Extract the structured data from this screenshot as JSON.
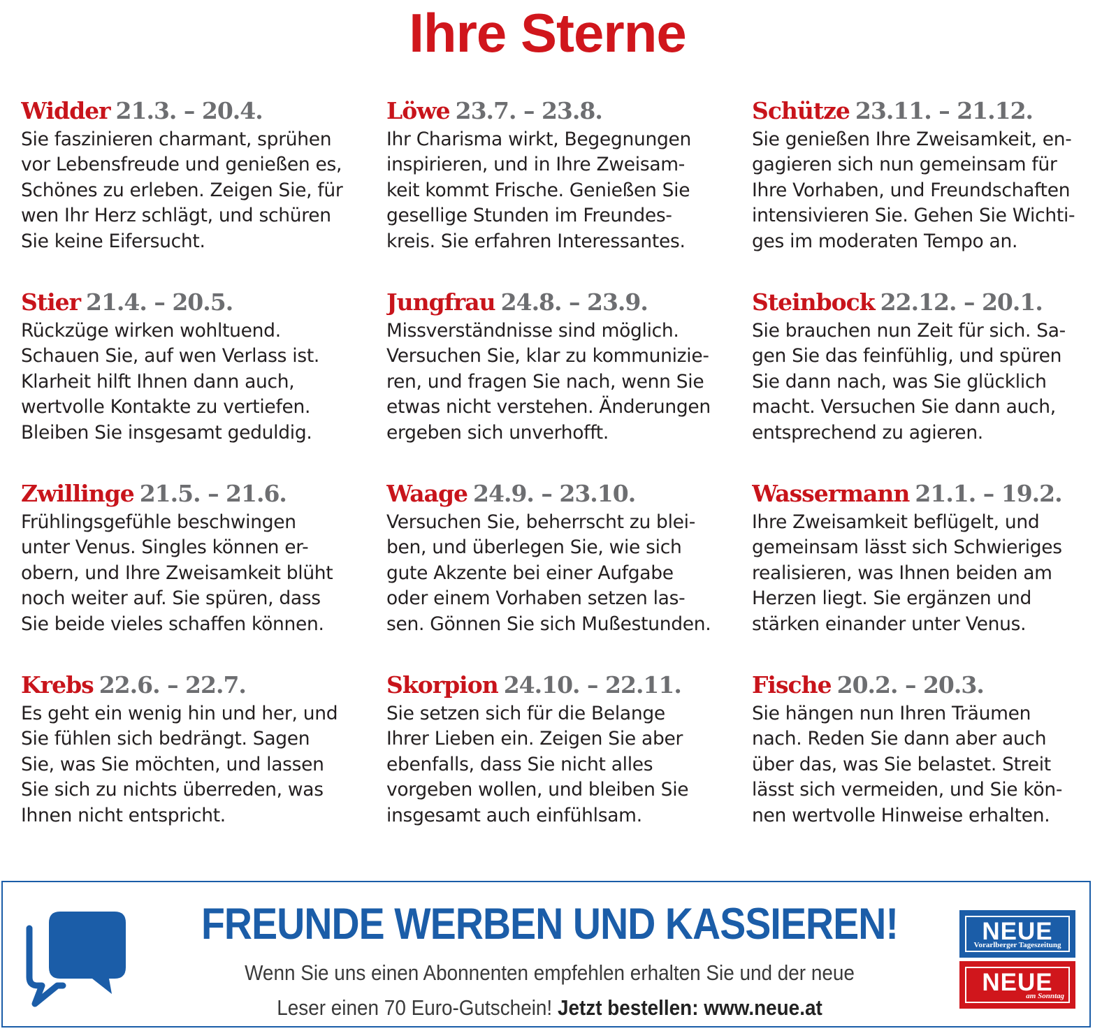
{
  "title": "Ihre Sterne",
  "horoscopes": [
    {
      "sign": "Widder",
      "dates": "21.3. – 20.4.",
      "text": "Sie faszinieren charmant, sprühen\nvor Lebensfreude und genießen es,\nSchönes zu erleben. Zeigen Sie, für\nwen Ihr Herz schlägt, und schüren\nSie keine Eifersucht."
    },
    {
      "sign": "Löwe",
      "dates": "23.7. – 23.8.",
      "text": "Ihr Charisma wirkt, Begegnungen\ninspirieren, und in Ihre Zweisam-\nkeit kommt Frische. Genießen Sie\ngesellige Stunden im Freundes-\nkreis. Sie erfahren Interessantes."
    },
    {
      "sign": "Schütze",
      "dates": "23.11. – 21.12.",
      "text": "Sie genießen Ihre Zweisamkeit, en-\ngagieren sich nun gemeinsam für\nIhre Vorhaben, und Freundschaften\nintensivieren Sie. Gehen Sie Wichti-\nges im moderaten Tempo an."
    },
    {
      "sign": "Stier",
      "dates": "21.4. – 20.5.",
      "text": "Rückzüge wirken wohltuend.\nSchauen Sie, auf wen Verlass ist.\nKlarheit hilft Ihnen dann auch,\nwertvolle Kontakte zu vertiefen.\nBleiben Sie insgesamt geduldig."
    },
    {
      "sign": "Jungfrau",
      "dates": "24.8. – 23.9.",
      "text": "Missverständnisse sind möglich.\nVersuchen Sie, klar zu kommunizie-\nren, und fragen Sie nach, wenn Sie\netwas nicht verstehen. Änderungen\nergeben sich unverhofft."
    },
    {
      "sign": "Steinbock",
      "dates": "22.12. – 20.1.",
      "text": "Sie brauchen nun Zeit für sich. Sa-\ngen Sie das feinfühlig, und spüren\nSie dann nach, was Sie glücklich\nmacht. Versuchen Sie dann auch,\nentsprechend zu agieren."
    },
    {
      "sign": "Zwillinge",
      "dates": "21.5. – 21.6.",
      "text": "Frühlingsgefühle beschwingen\nunter Venus. Singles können er-\nobern, und Ihre Zweisamkeit blüht\nnoch weiter auf. Sie spüren, dass\nSie beide vieles schaffen können."
    },
    {
      "sign": "Waage",
      "dates": "24.9. – 23.10.",
      "text": "Versuchen Sie, beherrscht zu blei-\nben, und überlegen Sie, wie sich\ngute Akzente bei einer Aufgabe\noder einem Vorhaben setzen las-\nsen. Gönnen Sie sich Mußestunden."
    },
    {
      "sign": "Wassermann",
      "dates": "21.1. – 19.2.",
      "text": "Ihre Zweisamkeit beflügelt, und\ngemeinsam lässt sich Schwieriges\nrealisieren, was Ihnen beiden am\nHerzen liegt. Sie ergänzen und\nstärken einander unter Venus."
    },
    {
      "sign": "Krebs",
      "dates": "22.6. – 22.7.",
      "text": "Es geht ein wenig hin und her, und\nSie fühlen sich bedrängt. Sagen\nSie, was Sie möchten, und lassen\nSie sich zu nichts überreden, was\nIhnen nicht entspricht."
    },
    {
      "sign": "Skorpion",
      "dates": "24.10. – 22.11.",
      "text": "Sie setzen sich für die Belange\nIhrer Lieben ein. Zeigen Sie aber\nebenfalls, dass Sie nicht alles\nvorgeben wollen, und bleiben Sie\ninsgesamt auch einfühlsam."
    },
    {
      "sign": "Fische",
      "dates": "20.2. – 20.3.",
      "text": "Sie hängen nun Ihren Träumen\nnach. Reden Sie dann aber auch\nüber das, was Sie belastet. Streit\nlässt sich vermeiden, und Sie kön-\nnen wertvolle Hinweise erhalten."
    }
  ],
  "promo": {
    "headline": "FREUNDE WERBEN UND KASSIEREN!",
    "line1": "Wenn Sie uns einen Abonnenten empfehlen erhalten Sie und der neue",
    "line2": "Leser einen 70 Euro-Gutschein!",
    "cta": "Jetzt bestellen: www.neue.at",
    "icon": "chat-bubbles-icon",
    "logos": {
      "blue_word": "NEUE",
      "blue_sub": "Vorarlberger Tageszeitung",
      "red_word": "NEUE",
      "red_sub": "am Sonntag"
    }
  },
  "colors": {
    "title_red": "#d0161c",
    "sign_red": "#c8141b",
    "date_gray": "#6d6e71",
    "promo_blue": "#1b5da8"
  }
}
